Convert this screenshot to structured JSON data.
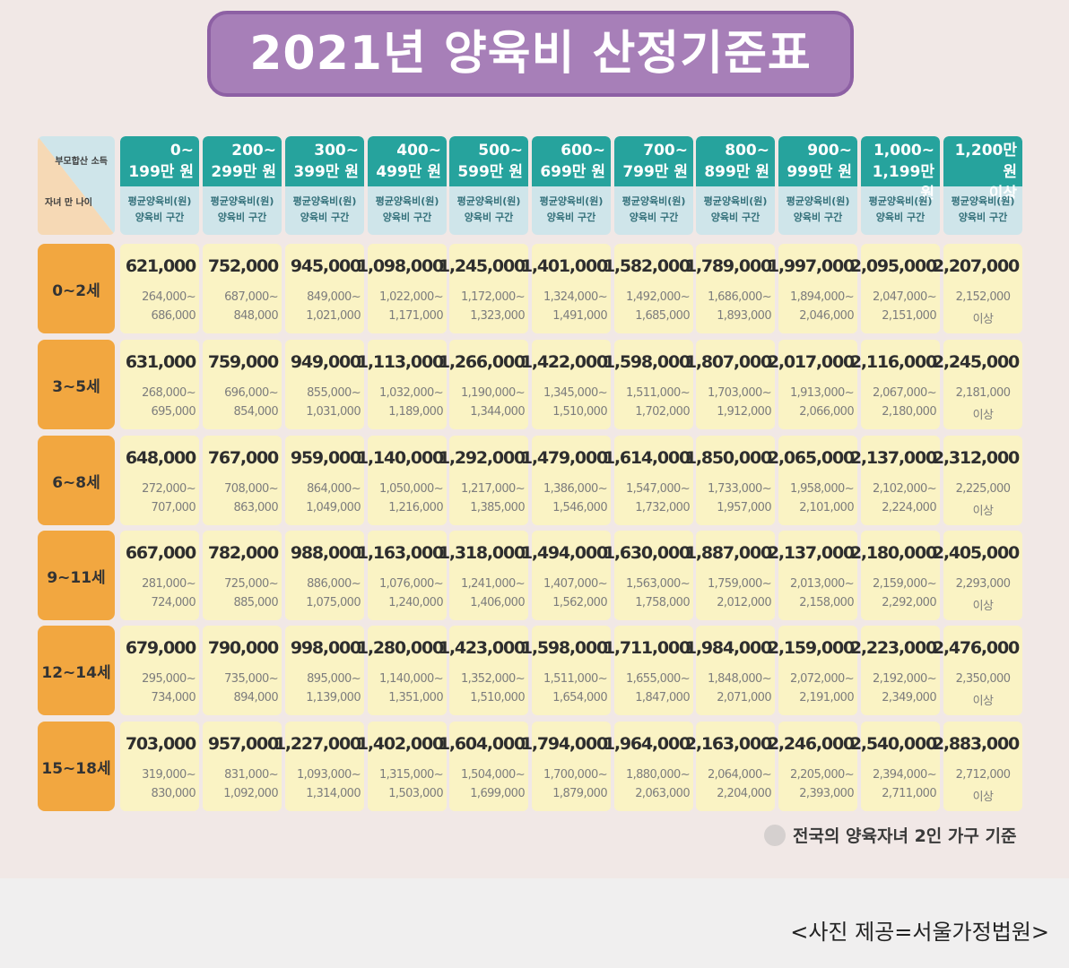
{
  "title": "2021년 양육비 산정기준표",
  "corner": {
    "top_label": "부모합산 소득",
    "bottom_label": "자녀 만 나이"
  },
  "sub_header": {
    "line1": "평균양육비(원)",
    "line2": "양육비 구간"
  },
  "colors": {
    "title_bg": "#a77fb8",
    "header_bg": "#26a39d",
    "subheader_bg": "#cfe5ea",
    "age_bg": "#f2a740",
    "cell_bg": "#faf3c4"
  },
  "income_brackets": [
    {
      "line1": "0~",
      "line2": "199만 원"
    },
    {
      "line1": "200~",
      "line2": "299만 원"
    },
    {
      "line1": "300~",
      "line2": "399만 원"
    },
    {
      "line1": "400~",
      "line2": "499만 원"
    },
    {
      "line1": "500~",
      "line2": "599만 원"
    },
    {
      "line1": "600~",
      "line2": "699만 원"
    },
    {
      "line1": "700~",
      "line2": "799만 원"
    },
    {
      "line1": "800~",
      "line2": "899만 원"
    },
    {
      "line1": "900~",
      "line2": "999만 원"
    },
    {
      "line1": "1,000~",
      "line2": "1,199만 원"
    },
    {
      "line1": "1,200만 원",
      "line2": "이상"
    }
  ],
  "rows": [
    {
      "age": "0~2세",
      "cells": [
        {
          "avg": "621,000",
          "r1": "264,000~",
          "r2": "686,000"
        },
        {
          "avg": "752,000",
          "r1": "687,000~",
          "r2": "848,000"
        },
        {
          "avg": "945,000",
          "r1": "849,000~",
          "r2": "1,021,000"
        },
        {
          "avg": "1,098,000",
          "r1": "1,022,000~",
          "r2": "1,171,000"
        },
        {
          "avg": "1,245,000",
          "r1": "1,172,000~",
          "r2": "1,323,000"
        },
        {
          "avg": "1,401,000",
          "r1": "1,324,000~",
          "r2": "1,491,000"
        },
        {
          "avg": "1,582,000",
          "r1": "1,492,000~",
          "r2": "1,685,000"
        },
        {
          "avg": "1,789,000",
          "r1": "1,686,000~",
          "r2": "1,893,000"
        },
        {
          "avg": "1,997,000",
          "r1": "1,894,000~",
          "r2": "2,046,000"
        },
        {
          "avg": "2,095,000",
          "r1": "2,047,000~",
          "r2": "2,151,000"
        },
        {
          "avg": "2,207,000",
          "r1": "2,152,000",
          "r2": "이상"
        }
      ]
    },
    {
      "age": "3~5세",
      "cells": [
        {
          "avg": "631,000",
          "r1": "268,000~",
          "r2": "695,000"
        },
        {
          "avg": "759,000",
          "r1": "696,000~",
          "r2": "854,000"
        },
        {
          "avg": "949,000",
          "r1": "855,000~",
          "r2": "1,031,000"
        },
        {
          "avg": "1,113,000",
          "r1": "1,032,000~",
          "r2": "1,189,000"
        },
        {
          "avg": "1,266,000",
          "r1": "1,190,000~",
          "r2": "1,344,000"
        },
        {
          "avg": "1,422,000",
          "r1": "1,345,000~",
          "r2": "1,510,000"
        },
        {
          "avg": "1,598,000",
          "r1": "1,511,000~",
          "r2": "1,702,000"
        },
        {
          "avg": "1,807,000",
          "r1": "1,703,000~",
          "r2": "1,912,000"
        },
        {
          "avg": "2,017,000",
          "r1": "1,913,000~",
          "r2": "2,066,000"
        },
        {
          "avg": "2,116,000",
          "r1": "2,067,000~",
          "r2": "2,180,000"
        },
        {
          "avg": "2,245,000",
          "r1": "2,181,000",
          "r2": "이상"
        }
      ]
    },
    {
      "age": "6~8세",
      "cells": [
        {
          "avg": "648,000",
          "r1": "272,000~",
          "r2": "707,000"
        },
        {
          "avg": "767,000",
          "r1": "708,000~",
          "r2": "863,000"
        },
        {
          "avg": "959,000",
          "r1": "864,000~",
          "r2": "1,049,000"
        },
        {
          "avg": "1,140,000",
          "r1": "1,050,000~",
          "r2": "1,216,000"
        },
        {
          "avg": "1,292,000",
          "r1": "1,217,000~",
          "r2": "1,385,000"
        },
        {
          "avg": "1,479,000",
          "r1": "1,386,000~",
          "r2": "1,546,000"
        },
        {
          "avg": "1,614,000",
          "r1": "1,547,000~",
          "r2": "1,732,000"
        },
        {
          "avg": "1,850,000",
          "r1": "1,733,000~",
          "r2": "1,957,000"
        },
        {
          "avg": "2,065,000",
          "r1": "1,958,000~",
          "r2": "2,101,000"
        },
        {
          "avg": "2,137,000",
          "r1": "2,102,000~",
          "r2": "2,224,000"
        },
        {
          "avg": "2,312,000",
          "r1": "2,225,000",
          "r2": "이상"
        }
      ]
    },
    {
      "age": "9~11세",
      "cells": [
        {
          "avg": "667,000",
          "r1": "281,000~",
          "r2": "724,000"
        },
        {
          "avg": "782,000",
          "r1": "725,000~",
          "r2": "885,000"
        },
        {
          "avg": "988,000",
          "r1": "886,000~",
          "r2": "1,075,000"
        },
        {
          "avg": "1,163,000",
          "r1": "1,076,000~",
          "r2": "1,240,000"
        },
        {
          "avg": "1,318,000",
          "r1": "1,241,000~",
          "r2": "1,406,000"
        },
        {
          "avg": "1,494,000",
          "r1": "1,407,000~",
          "r2": "1,562,000"
        },
        {
          "avg": "1,630,000",
          "r1": "1,563,000~",
          "r2": "1,758,000"
        },
        {
          "avg": "1,887,000",
          "r1": "1,759,000~",
          "r2": "2,012,000"
        },
        {
          "avg": "2,137,000",
          "r1": "2,013,000~",
          "r2": "2,158,000"
        },
        {
          "avg": "2,180,000",
          "r1": "2,159,000~",
          "r2": "2,292,000"
        },
        {
          "avg": "2,405,000",
          "r1": "2,293,000",
          "r2": "이상"
        }
      ]
    },
    {
      "age": "12~14세",
      "cells": [
        {
          "avg": "679,000",
          "r1": "295,000~",
          "r2": "734,000"
        },
        {
          "avg": "790,000",
          "r1": "735,000~",
          "r2": "894,000"
        },
        {
          "avg": "998,000",
          "r1": "895,000~",
          "r2": "1,139,000"
        },
        {
          "avg": "1,280,000",
          "r1": "1,140,000~",
          "r2": "1,351,000"
        },
        {
          "avg": "1,423,000",
          "r1": "1,352,000~",
          "r2": "1,510,000"
        },
        {
          "avg": "1,598,000",
          "r1": "1,511,000~",
          "r2": "1,654,000"
        },
        {
          "avg": "1,711,000",
          "r1": "1,655,000~",
          "r2": "1,847,000"
        },
        {
          "avg": "1,984,000",
          "r1": "1,848,000~",
          "r2": "2,071,000"
        },
        {
          "avg": "2,159,000",
          "r1": "2,072,000~",
          "r2": "2,191,000"
        },
        {
          "avg": "2,223,000",
          "r1": "2,192,000~",
          "r2": "2,349,000"
        },
        {
          "avg": "2,476,000",
          "r1": "2,350,000",
          "r2": "이상"
        }
      ]
    },
    {
      "age": "15~18세",
      "cells": [
        {
          "avg": "703,000",
          "r1": "319,000~",
          "r2": "830,000"
        },
        {
          "avg": "957,000",
          "r1": "831,000~",
          "r2": "1,092,000"
        },
        {
          "avg": "1,227,000",
          "r1": "1,093,000~",
          "r2": "1,314,000"
        },
        {
          "avg": "1,402,000",
          "r1": "1,315,000~",
          "r2": "1,503,000"
        },
        {
          "avg": "1,604,000",
          "r1": "1,504,000~",
          "r2": "1,699,000"
        },
        {
          "avg": "1,794,000",
          "r1": "1,700,000~",
          "r2": "1,879,000"
        },
        {
          "avg": "1,964,000",
          "r1": "1,880,000~",
          "r2": "2,063,000"
        },
        {
          "avg": "2,163,000",
          "r1": "2,064,000~",
          "r2": "2,204,000"
        },
        {
          "avg": "2,246,000",
          "r1": "2,205,000~",
          "r2": "2,393,000"
        },
        {
          "avg": "2,540,000",
          "r1": "2,394,000~",
          "r2": "2,711,000"
        },
        {
          "avg": "2,883,000",
          "r1": "2,712,000",
          "r2": "이상"
        }
      ]
    }
  ],
  "footnote": "전국의 양육자녀 2인 가구 기준",
  "credit": "<사진 제공=서울가정법원>"
}
